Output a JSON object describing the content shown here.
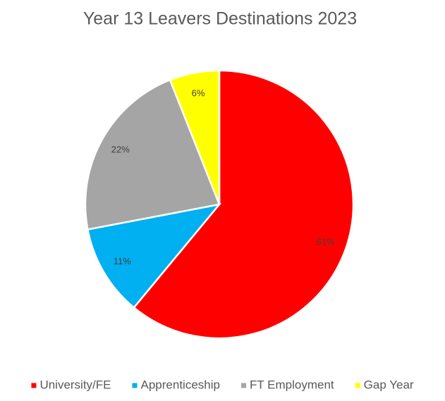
{
  "chart_data": {
    "type": "pie",
    "title": "Year 13 Leavers Destinations 2023",
    "categories": [
      "University/FE",
      "Apprenticeship",
      "FT Employment",
      "Gap Year"
    ],
    "values": [
      61,
      11,
      22,
      6
    ],
    "value_labels": [
      "61%",
      "11%",
      "22%",
      "6%"
    ],
    "colors": [
      "#ff0000",
      "#00b0f0",
      "#a5a5a5",
      "#ffff00"
    ],
    "legend": "bottom"
  }
}
